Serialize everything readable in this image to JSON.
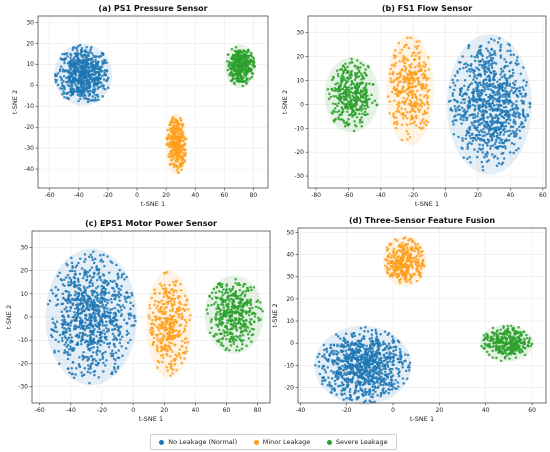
{
  "legend": {
    "items": [
      {
        "label": "No Leakage (Normal)",
        "color": "#1f77b4"
      },
      {
        "label": "Minor Leakage",
        "color": "#ff9f1c"
      },
      {
        "label": "Severe Leakage",
        "color": "#2ca02c"
      }
    ]
  },
  "chart_data": [
    {
      "type": "scatter",
      "title": "(a) PS1 Pressure Sensor",
      "xlabel": "t-SNE 1",
      "ylabel": "t-SNE 2",
      "xlim": [
        -68,
        90
      ],
      "ylim": [
        -49,
        33
      ],
      "xticks": [
        -60,
        -40,
        -20,
        0,
        20,
        40,
        60,
        80
      ],
      "yticks": [
        -40,
        -30,
        -20,
        -10,
        0,
        10,
        20,
        30
      ],
      "grid": true,
      "series": [
        {
          "name": "No Leakage (Normal)",
          "color": "#1f77b4",
          "n": 650,
          "points": [
            {
              "cx": -37,
              "cy": 5,
              "rx": 19,
              "ry": 14
            }
          ]
        },
        {
          "name": "Minor Leakage",
          "color": "#ff9f1c",
          "n": 330,
          "points": [
            {
              "cx": 27,
              "cy": -28,
              "rx": 7,
              "ry": 14
            }
          ]
        },
        {
          "name": "Severe Leakage",
          "color": "#2ca02c",
          "n": 360,
          "points": [
            {
              "cx": 71,
              "cy": 9,
              "rx": 10,
              "ry": 10
            }
          ]
        }
      ]
    },
    {
      "type": "scatter",
      "title": "(b) FS1 Flow Sensor",
      "xlabel": "t-SNE 1",
      "ylabel": "t-SNE 2",
      "xlim": [
        -85,
        62
      ],
      "ylim": [
        -35,
        37
      ],
      "xticks": [
        -80,
        -60,
        -40,
        -20,
        0,
        20,
        40,
        60
      ],
      "yticks": [
        -30,
        -20,
        -10,
        0,
        10,
        20,
        30
      ],
      "grid": true,
      "series": [
        {
          "name": "No Leakage (Normal)",
          "color": "#1f77b4",
          "n": 900,
          "points": [
            {
              "cx": 27,
              "cy": 0,
              "rx": 25,
              "ry": 28
            }
          ]
        },
        {
          "name": "Minor Leakage",
          "color": "#ff9f1c",
          "n": 340,
          "points": [
            {
              "cx": -22,
              "cy": 6,
              "rx": 14,
              "ry": 22
            }
          ]
        },
        {
          "name": "Severe Leakage",
          "color": "#2ca02c",
          "n": 400,
          "points": [
            {
              "cx": -58,
              "cy": 4,
              "rx": 16,
              "ry": 15
            }
          ]
        }
      ]
    },
    {
      "type": "scatter",
      "title": "(c) EPS1 Motor Power Sensor",
      "xlabel": "t-SNE 1",
      "ylabel": "t-SNE 2",
      "xlim": [
        -65,
        88
      ],
      "ylim": [
        -37,
        37
      ],
      "xticks": [
        -60,
        -40,
        -20,
        0,
        20,
        40,
        60,
        80
      ],
      "yticks": [
        -30,
        -20,
        -10,
        0,
        10,
        20,
        30
      ],
      "grid": true,
      "series": [
        {
          "name": "No Leakage (Normal)",
          "color": "#1f77b4",
          "n": 900,
          "points": [
            {
              "cx": -27,
              "cy": 0,
              "rx": 28,
              "ry": 28
            }
          ]
        },
        {
          "name": "Minor Leakage",
          "color": "#ff9f1c",
          "n": 360,
          "points": [
            {
              "cx": 23,
              "cy": -3,
              "rx": 14,
              "ry": 22
            }
          ]
        },
        {
          "name": "Severe Leakage",
          "color": "#2ca02c",
          "n": 420,
          "points": [
            {
              "cx": 65,
              "cy": 1,
              "rx": 18,
              "ry": 16
            }
          ]
        }
      ]
    },
    {
      "type": "scatter",
      "title": "(d) Three-Sensor Feature Fusion",
      "xlabel": "t-SNE 1",
      "ylabel": "t-SNE 2",
      "xlim": [
        -41,
        66
      ],
      "ylim": [
        -27,
        52
      ],
      "xticks": [
        -40,
        -20,
        0,
        20,
        40,
        60
      ],
      "yticks": [
        -20,
        -10,
        0,
        10,
        20,
        30,
        40,
        50
      ],
      "grid": true,
      "series": [
        {
          "name": "No Leakage (Normal)",
          "color": "#1f77b4",
          "n": 900,
          "points": [
            {
              "cx": -13,
              "cy": -10,
              "rx": 20,
              "ry": 17
            }
          ]
        },
        {
          "name": "Minor Leakage",
          "color": "#ff9f1c",
          "n": 330,
          "points": [
            {
              "cx": 5,
              "cy": 37,
              "rx": 9,
              "ry": 11
            }
          ]
        },
        {
          "name": "Severe Leakage",
          "color": "#2ca02c",
          "n": 330,
          "points": [
            {
              "cx": 49,
              "cy": 0,
              "rx": 11,
              "ry": 8
            }
          ]
        }
      ]
    }
  ]
}
